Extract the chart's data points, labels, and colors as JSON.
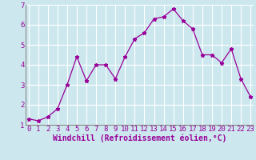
{
  "x": [
    0,
    1,
    2,
    3,
    4,
    5,
    6,
    7,
    8,
    9,
    10,
    11,
    12,
    13,
    14,
    15,
    16,
    17,
    18,
    19,
    20,
    21,
    22,
    23
  ],
  "y": [
    1.3,
    1.2,
    1.4,
    1.8,
    3.0,
    4.4,
    3.2,
    4.0,
    4.0,
    3.3,
    4.4,
    5.3,
    5.6,
    6.3,
    6.4,
    6.8,
    6.2,
    5.8,
    4.5,
    4.5,
    4.1,
    4.8,
    3.3,
    2.4
  ],
  "xlabel": "Windchill (Refroidissement éolien,°C)",
  "ylim": [
    1,
    7
  ],
  "yticks": [
    1,
    2,
    3,
    4,
    5,
    6,
    7
  ],
  "xticks": [
    0,
    1,
    2,
    3,
    4,
    5,
    6,
    7,
    8,
    9,
    10,
    11,
    12,
    13,
    14,
    15,
    16,
    17,
    18,
    19,
    20,
    21,
    22,
    23
  ],
  "line_color": "#990099",
  "marker": "*",
  "bg_color": "#cce8ee",
  "grid_color": "#ffffff",
  "label_color": "#990099",
  "xlabel_fontsize": 7,
  "tick_fontsize": 6.5
}
